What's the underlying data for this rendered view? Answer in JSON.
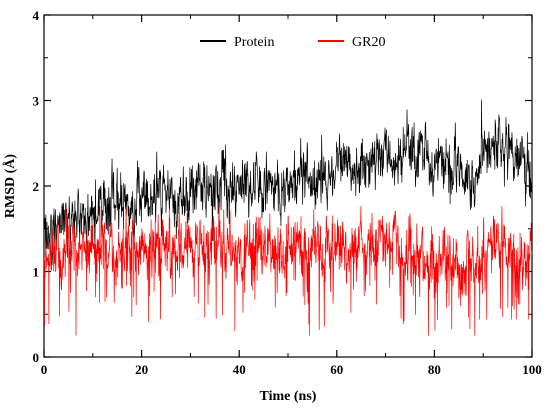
{
  "chart_data": {
    "type": "line",
    "title": "",
    "xlabel": "Time (ns)",
    "ylabel": "RMSD (Å)",
    "xlim": [
      0,
      100
    ],
    "ylim": [
      0,
      4
    ],
    "x_ticks": [
      "0",
      "20",
      "40",
      "60",
      "80",
      "100"
    ],
    "y_ticks": [
      "0",
      "1",
      "2",
      "3",
      "4"
    ],
    "grid": false,
    "legend_position": "top-center",
    "series": [
      {
        "name": "Protein",
        "color": "#000000",
        "x": [
          0,
          2,
          5,
          8,
          10,
          12,
          15,
          18,
          20,
          22,
          25,
          28,
          30,
          32,
          35,
          38,
          40,
          42,
          45,
          48,
          50,
          52,
          55,
          58,
          60,
          62,
          65,
          68,
          70,
          72,
          75,
          78,
          80,
          82,
          85,
          88,
          90,
          92,
          95,
          98,
          100
        ],
        "y": [
          1.35,
          1.55,
          1.6,
          1.65,
          1.7,
          1.75,
          1.8,
          1.75,
          1.85,
          1.9,
          1.9,
          1.85,
          1.9,
          1.95,
          2.0,
          1.95,
          2.0,
          2.05,
          1.95,
          1.95,
          2.0,
          2.15,
          2.1,
          2.05,
          2.25,
          2.3,
          2.25,
          2.35,
          2.4,
          2.3,
          2.45,
          2.4,
          2.2,
          2.25,
          2.2,
          2.0,
          2.4,
          2.5,
          2.45,
          2.25,
          2.1
        ]
      },
      {
        "name": "GR20",
        "color": "#ff0000",
        "x": [
          0,
          2,
          5,
          8,
          10,
          12,
          15,
          18,
          20,
          22,
          25,
          28,
          30,
          32,
          35,
          38,
          40,
          42,
          45,
          48,
          50,
          52,
          55,
          58,
          60,
          62,
          65,
          68,
          70,
          72,
          75,
          78,
          80,
          82,
          85,
          88,
          90,
          92,
          95,
          98,
          100
        ],
        "y": [
          1.0,
          1.2,
          1.3,
          1.25,
          1.25,
          1.2,
          1.25,
          1.3,
          1.25,
          1.3,
          1.3,
          1.25,
          1.3,
          1.3,
          1.25,
          1.3,
          1.25,
          1.3,
          1.3,
          1.25,
          1.25,
          1.3,
          1.25,
          1.3,
          1.3,
          1.25,
          1.3,
          1.3,
          1.35,
          1.3,
          1.25,
          1.2,
          1.1,
          1.15,
          1.0,
          1.15,
          1.25,
          1.35,
          1.25,
          1.1,
          1.2
        ]
      }
    ]
  }
}
